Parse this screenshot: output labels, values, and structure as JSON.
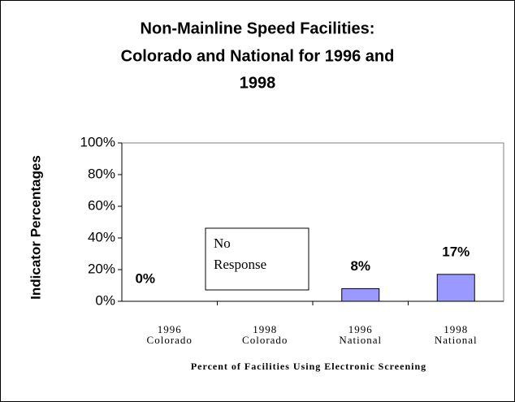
{
  "chart_data": {
    "type": "bar",
    "title": [
      "Non-Mainline Speed Facilities:",
      "Colorado and National for 1996 and",
      "1998"
    ],
    "y_label": "Indicator Percentages",
    "x_label": "Percent of Facilities Using Electronic Screening",
    "categories": [
      [
        "1996",
        "Colorado"
      ],
      [
        "1998",
        "Colorado"
      ],
      [
        "1996",
        "National"
      ],
      [
        "1998",
        "National"
      ]
    ],
    "values": [
      0,
      null,
      8,
      17
    ],
    "value_labels": [
      "0%",
      null,
      "8%",
      "17%"
    ],
    "annotation": [
      "No",
      "Response"
    ],
    "color": "#9999ff",
    "ylim": [
      0,
      100
    ],
    "yticks": [
      {
        "value": 0,
        "label": "0%"
      },
      {
        "value": 20,
        "label": "20%"
      },
      {
        "value": 40,
        "label": "40%"
      },
      {
        "value": 60,
        "label": "60%"
      },
      {
        "value": 80,
        "label": "80%"
      },
      {
        "value": 100,
        "label": "100%"
      }
    ],
    "grid": false
  }
}
